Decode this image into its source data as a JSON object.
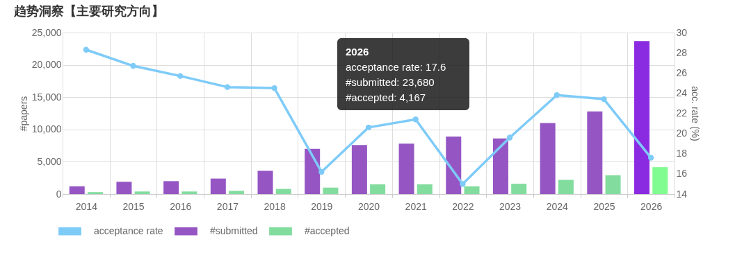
{
  "chart_data": {
    "type": "bar",
    "title": "趋势洞察【主要研究方向】",
    "ylabel": "#papers",
    "y2label": "acc. rate (%)",
    "categories": [
      "2014",
      "2015",
      "2016",
      "2017",
      "2018",
      "2019",
      "2020",
      "2021",
      "2022",
      "2023",
      "2024",
      "2025",
      "2026"
    ],
    "series": [
      {
        "name": "acceptance rate",
        "type": "line",
        "axis": "y2",
        "color": "#7ecbf8",
        "values": [
          28.3,
          26.7,
          25.7,
          24.6,
          24.5,
          16.2,
          20.6,
          21.4,
          15.0,
          19.6,
          23.8,
          23.4,
          17.6
        ]
      },
      {
        "name": "#submitted",
        "color": "#9556c4",
        "colors": [
          "#9556c4",
          "#9556c4",
          "#9556c4",
          "#9556c4",
          "#9556c4",
          "#9556c4",
          "#9556c4",
          "#9556c4",
          "#9556c4",
          "#9556c4",
          "#9556c4",
          "#9556c4",
          "#8a2be2"
        ],
        "values": [
          1200,
          1900,
          2000,
          2400,
          3600,
          7000,
          7600,
          7800,
          8900,
          8600,
          11000,
          12800,
          23680
        ]
      },
      {
        "name": "#accepted",
        "color": "#82dc9e",
        "colors": [
          "#82dc9e",
          "#82dc9e",
          "#82dc9e",
          "#82dc9e",
          "#82dc9e",
          "#82dc9e",
          "#82dc9e",
          "#82dc9e",
          "#82dc9e",
          "#82dc9e",
          "#82dc9e",
          "#82dc9e",
          "#80fc90"
        ],
        "values": [
          300,
          400,
          400,
          500,
          800,
          1000,
          1500,
          1500,
          1200,
          1600,
          2200,
          2900,
          4167
        ]
      }
    ],
    "ylim": [
      0,
      25000
    ],
    "yticks": [
      0,
      {
        "value": 5000,
        "label": "5,000"
      },
      {
        "value": 10000,
        "label": "10,000"
      },
      {
        "value": 15000,
        "label": "15,000"
      },
      {
        "value": 20000,
        "label": "20,000"
      },
      {
        "value": 25000,
        "label": "25,000"
      }
    ],
    "y2lim": [
      14,
      30
    ],
    "y2ticks": [
      14,
      16,
      18,
      20,
      22,
      24,
      26,
      28,
      30
    ],
    "marker": "circle",
    "line_style": "solid",
    "grid": true,
    "legend": "bottom left",
    "annotations": [
      "2026",
      "acceptance rate: 17.6",
      "#submitted: 23,680",
      "#accepted: 4,167"
    ]
  }
}
